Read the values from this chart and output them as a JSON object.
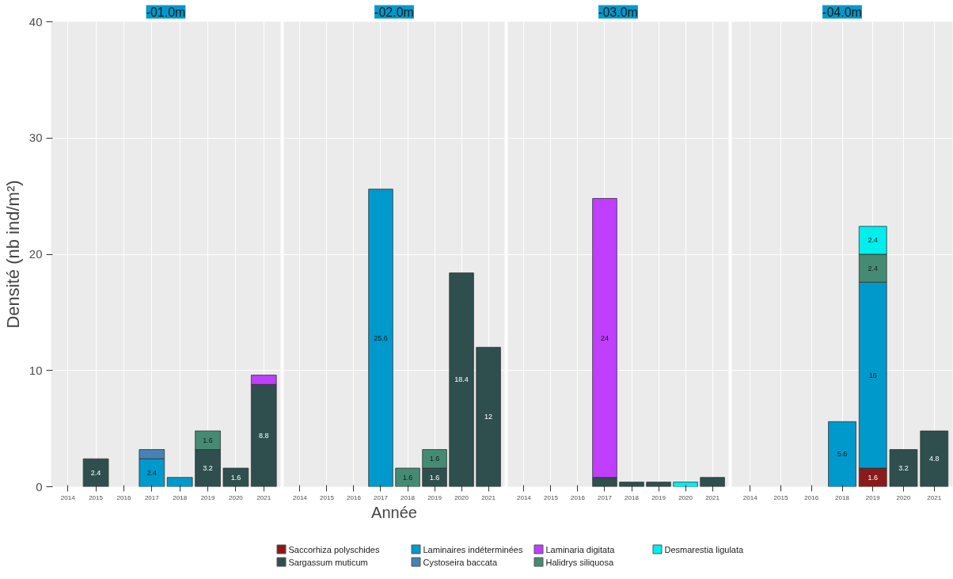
{
  "chart_data": [
    {
      "type": "bar",
      "title": "-01.0m",
      "ylabel": "Densité (nb ind/m²)",
      "stacked": true,
      "grid": true,
      "legend": "bottom",
      "ylim": [
        0,
        40
      ],
      "yticks": [
        0,
        10,
        20,
        30,
        40
      ],
      "categories": [
        "2014",
        "2015",
        "2016",
        "2017",
        "2018",
        "2019",
        "2020",
        "2021"
      ],
      "series": [
        {
          "name": "Saccorhiza polyschides",
          "color": "#8b1a1a",
          "values": [
            null,
            null,
            null,
            null,
            null,
            null,
            null,
            null
          ],
          "value_labels": [
            null,
            null,
            null,
            null,
            null,
            null,
            null,
            null
          ]
        },
        {
          "name": "Sargassum muticum",
          "color": "#2f4f4f",
          "values": [
            null,
            2.4,
            null,
            null,
            null,
            3.2,
            1.6,
            8.8
          ],
          "value_labels": [
            null,
            "2.4",
            null,
            null,
            null,
            "3.2",
            "1.6",
            "8.8"
          ]
        },
        {
          "name": "Laminaires indéterminées",
          "color": "#0099cc",
          "values": [
            null,
            null,
            null,
            2.4,
            0.8,
            null,
            null,
            null
          ],
          "value_labels": [
            null,
            null,
            null,
            "2.4",
            null,
            null,
            null,
            null
          ]
        },
        {
          "name": "Cystoseira baccata",
          "color": "#4682b4",
          "values": [
            null,
            null,
            null,
            0.8,
            null,
            null,
            null,
            null
          ],
          "value_labels": [
            null,
            null,
            null,
            null,
            null,
            null,
            null,
            null
          ]
        },
        {
          "name": "Laminaria digitata",
          "color": "#bf3eff",
          "values": [
            null,
            null,
            null,
            null,
            null,
            null,
            null,
            0.8
          ],
          "value_labels": [
            null,
            null,
            null,
            null,
            null,
            null,
            null,
            null
          ]
        },
        {
          "name": "Halidrys siliquosa",
          "color": "#458b74",
          "values": [
            null,
            null,
            null,
            null,
            null,
            1.6,
            null,
            null
          ],
          "value_labels": [
            null,
            null,
            null,
            null,
            null,
            "1.6",
            null,
            null
          ]
        },
        {
          "name": "Desmarestia ligulata",
          "color": "#00eeee",
          "values": [
            null,
            null,
            null,
            null,
            null,
            null,
            null,
            null
          ],
          "value_labels": [
            null,
            null,
            null,
            null,
            null,
            null,
            null,
            null
          ]
        }
      ]
    },
    {
      "type": "bar",
      "title": "-02.0m",
      "xlabel": "Année",
      "stacked": true,
      "grid": true,
      "tick_labels": "x",
      "ylim": [
        0,
        40
      ],
      "yticks": [
        0,
        10,
        20,
        30,
        40
      ],
      "categories": [
        "2014",
        "2015",
        "2016",
        "2017",
        "2018",
        "2019",
        "2020",
        "2021"
      ],
      "series": [
        {
          "color": "#2f4f4f",
          "values": [
            null,
            null,
            null,
            null,
            null,
            1.6,
            18.4,
            12
          ],
          "value_labels": [
            null,
            null,
            null,
            null,
            null,
            "1.6",
            "18.4",
            "12"
          ]
        },
        {
          "color": "#0099cc",
          "values": [
            null,
            null,
            null,
            25.6,
            null,
            null,
            null,
            null
          ],
          "value_labels": [
            null,
            null,
            null,
            "25.6",
            null,
            null,
            null,
            null
          ]
        },
        {
          "color": "#458b74",
          "values": [
            null,
            null,
            null,
            null,
            1.6,
            1.6,
            null,
            null
          ],
          "value_labels": [
            null,
            null,
            null,
            null,
            "1.6",
            "1.6",
            null,
            null
          ]
        }
      ]
    },
    {
      "type": "bar",
      "title": "-03.0m",
      "stacked": true,
      "grid": true,
      "tick_labels": "x",
      "ylim": [
        0,
        40
      ],
      "yticks": [
        0,
        10,
        20,
        30,
        40
      ],
      "categories": [
        "2014",
        "2015",
        "2016",
        "2017",
        "2018",
        "2019",
        "2020",
        "2021"
      ],
      "series": [
        {
          "color": "#2f4f4f",
          "values": [
            null,
            null,
            null,
            0.8,
            0.4,
            0.4,
            null,
            0.8
          ],
          "value_labels": [
            null,
            null,
            null,
            null,
            null,
            null,
            null,
            null
          ]
        },
        {
          "color": "#bf3eff",
          "values": [
            null,
            null,
            null,
            24,
            null,
            null,
            null,
            null
          ],
          "value_labels": [
            null,
            null,
            null,
            "24",
            null,
            null,
            null,
            null
          ]
        },
        {
          "color": "#00eeee",
          "values": [
            null,
            null,
            null,
            null,
            null,
            null,
            0.4,
            null
          ],
          "value_labels": [
            null,
            null,
            null,
            null,
            null,
            null,
            null,
            null
          ]
        }
      ]
    },
    {
      "type": "bar",
      "title": "-04.0m",
      "stacked": true,
      "grid": true,
      "tick_labels": "x",
      "ylim": [
        0,
        40
      ],
      "yticks": [
        0,
        10,
        20,
        30,
        40
      ],
      "categories": [
        "2014",
        "2015",
        "2016",
        "2018",
        "2019",
        "2020",
        "2021"
      ],
      "series": [
        {
          "color": "#8b1a1a",
          "values": [
            null,
            null,
            null,
            null,
            1.6,
            null,
            null
          ],
          "value_labels": [
            null,
            null,
            null,
            null,
            "1.6",
            null,
            null
          ]
        },
        {
          "color": "#2f4f4f",
          "values": [
            null,
            null,
            null,
            null,
            null,
            3.2,
            4.8
          ],
          "value_labels": [
            null,
            null,
            null,
            null,
            null,
            "3.2",
            "4.8"
          ]
        },
        {
          "color": "#0099cc",
          "values": [
            null,
            null,
            null,
            5.6,
            16,
            null,
            null
          ],
          "value_labels": [
            null,
            null,
            null,
            "5.6",
            "16",
            null,
            null
          ]
        },
        {
          "color": "#458b74",
          "values": [
            null,
            null,
            null,
            null,
            2.4,
            null,
            null
          ],
          "value_labels": [
            null,
            null,
            null,
            null,
            "2.4",
            null,
            null
          ]
        },
        {
          "color": "#00eeee",
          "values": [
            null,
            null,
            null,
            null,
            2.4,
            null,
            null
          ],
          "value_labels": [
            null,
            null,
            null,
            null,
            "2.4",
            null,
            null
          ]
        }
      ]
    }
  ]
}
